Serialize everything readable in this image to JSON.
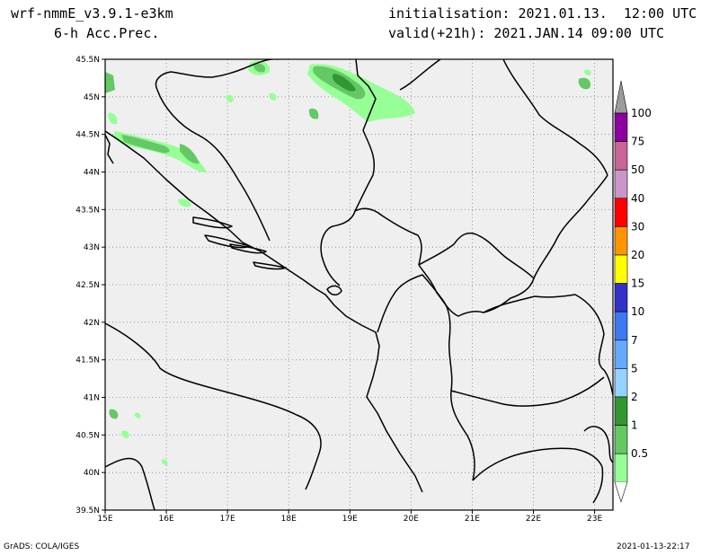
{
  "header": {
    "model": "wrf-nmmE_v3.9.1-e3km",
    "field": "6-h Acc.Prec.",
    "init": "initialisation: 2021.01.13.  12:00 UTC",
    "valid": "valid(+21h): 2021.JAN.14 09:00 UTC"
  },
  "footer": {
    "credit": "GrADS: COLA/IGES",
    "timestamp": "2021-01-13-22:17"
  },
  "map": {
    "lon_range": [
      15,
      23.3
    ],
    "lat_range": [
      39.5,
      45.5
    ],
    "lon_ticks": [
      "15E",
      "16E",
      "17E",
      "18E",
      "19E",
      "20E",
      "21E",
      "22E",
      "23E"
    ],
    "lat_ticks": [
      "39.5N",
      "40N",
      "40.5N",
      "41N",
      "41.5N",
      "42N",
      "42.5N",
      "43N",
      "43.5N",
      "44N",
      "44.5N",
      "45N",
      "45.5N"
    ],
    "gridlines": "dotted",
    "background_color": "#efefef",
    "coastline_color": "#000000"
  },
  "legend": {
    "labels": [
      "100",
      "75",
      "50",
      "40",
      "30",
      "20",
      "15",
      "10",
      "7",
      "5",
      "2",
      "1",
      "0.5"
    ],
    "colors": [
      "#9b9b9b",
      "#8c00a0",
      "#c86496",
      "#c896c8",
      "#ff0000",
      "#ff9600",
      "#ffff00",
      "#3232c8",
      "#3c78f0",
      "#64aaff",
      "#96d2ff",
      "#329632",
      "#64c864",
      "#96ff96"
    ]
  }
}
